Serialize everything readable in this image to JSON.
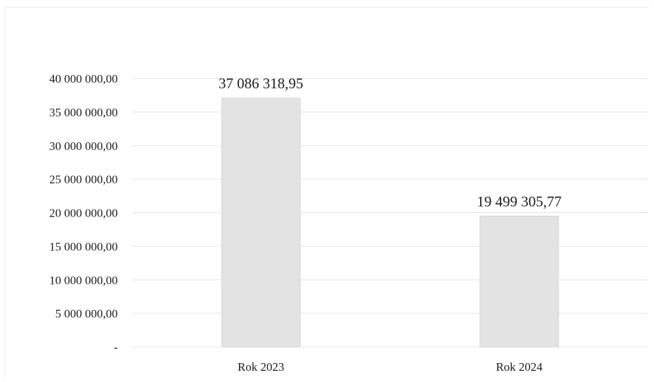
{
  "chart_data": {
    "type": "bar",
    "title": "",
    "xlabel": "",
    "ylabel": "",
    "categories": [
      "Rok 2023",
      "Rok 2024"
    ],
    "values": [
      37086318.95,
      19499305.77
    ],
    "value_labels": [
      "37 086 318,95",
      "19 499 305,77"
    ],
    "ylim": [
      0,
      40000000
    ],
    "y_ticks": [
      0,
      5000000,
      10000000,
      15000000,
      20000000,
      25000000,
      30000000,
      35000000,
      40000000
    ],
    "y_tick_labels": [
      "-",
      "5 000 000,00",
      "10 000 000,00",
      "15 000 000,00",
      "20 000 000,00",
      "25 000 000,00",
      "30 000 000,00",
      "35 000 000,00",
      "40 000 000,00"
    ],
    "grid": true,
    "legend": "none",
    "colors": {
      "bar": "#e3e3e3",
      "bar_stroke": "#d6d6d6",
      "grid": "#e4e4e4",
      "text": "#1c1c1c"
    }
  }
}
